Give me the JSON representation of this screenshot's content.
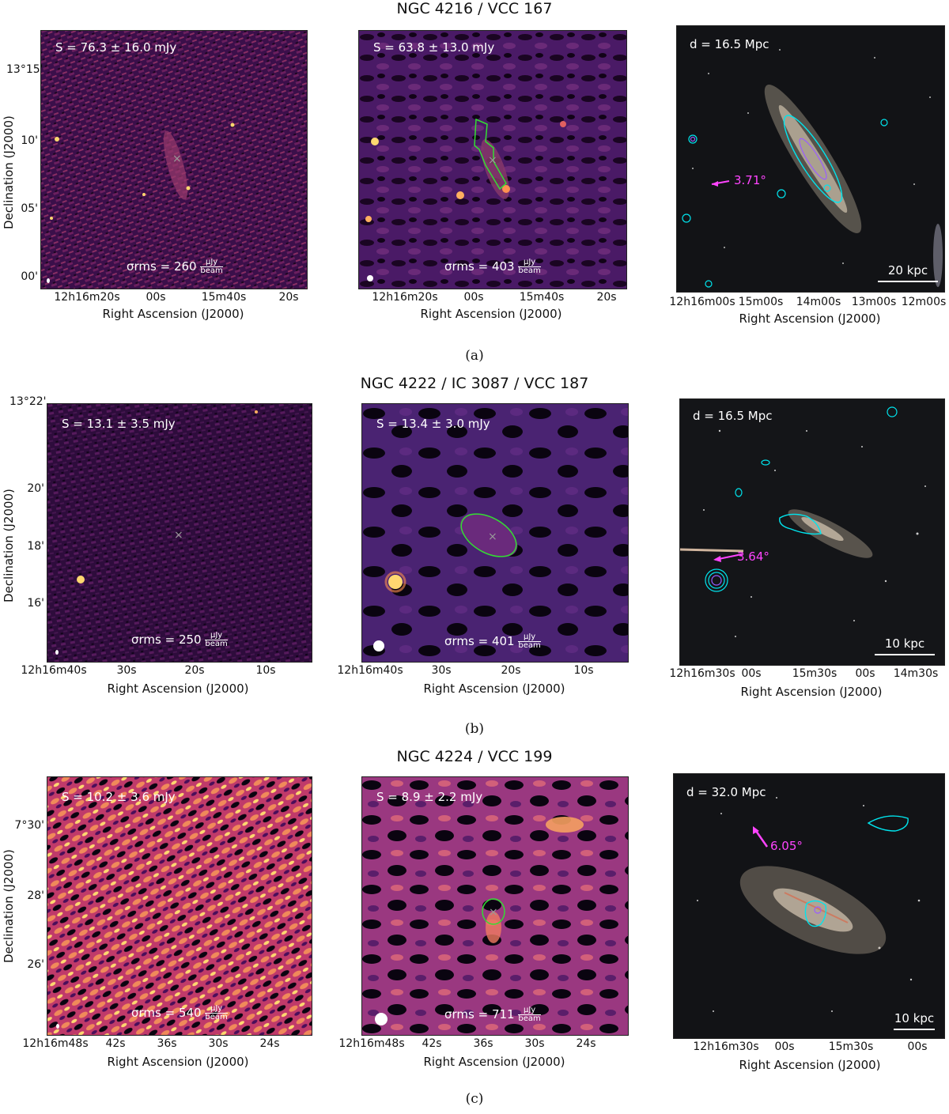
{
  "rows": [
    {
      "title": "NGC 4216 / VCC 167",
      "caption": "(a)",
      "left": {
        "flux": "S = 76.3 ± 16.0 mJy",
        "sigma_value": "260"
      },
      "mid": {
        "flux": "S = 63.8 ± 13.0 mJy",
        "sigma_value": "403"
      },
      "right": {
        "distance": "d = 16.5 Mpc",
        "angle": "3.71°",
        "scalebar": "20 kpc"
      },
      "yticks": [
        "13°15'",
        "10'",
        "05'",
        "00'"
      ],
      "xticks_lm": [
        "12h16m20s",
        "00s",
        "15m40s",
        "20s"
      ],
      "xticks_r": [
        "12h16m00s",
        "15m00s",
        "14m00s",
        "13m00s",
        "12m00s"
      ]
    },
    {
      "title": "NGC 4222 / IC 3087 / VCC 187",
      "caption": "(b)",
      "left": {
        "flux": "S = 13.1 ± 3.5 mJy",
        "sigma_value": "250"
      },
      "mid": {
        "flux": "S = 13.4 ± 3.0 mJy",
        "sigma_value": "401"
      },
      "right": {
        "distance": "d = 16.5 Mpc",
        "angle": "3.64°",
        "scalebar": "10 kpc"
      },
      "yticks": [
        "13°22'",
        "20'",
        "18'",
        "16'"
      ],
      "xticks_lm": [
        "12h16m40s",
        "30s",
        "20s",
        "10s"
      ],
      "xticks_r": [
        "12h16m30s",
        "00s",
        "15m30s",
        "00s",
        "14m30s"
      ]
    },
    {
      "title": "NGC 4224 / VCC 199",
      "caption": "(c)",
      "left": {
        "flux": "S = 10.2 ± 3.6 mJy",
        "sigma_value": "540"
      },
      "mid": {
        "flux": "S = 8.9 ± 2.2 mJy",
        "sigma_value": "711"
      },
      "right": {
        "distance": "d = 32.0 Mpc",
        "angle": "6.05°",
        "scalebar": "10 kpc"
      },
      "yticks": [
        "7°30'",
        "28'",
        "26'"
      ],
      "xticks_lm": [
        "12h16m48s",
        "42s",
        "36s",
        "30s",
        "24s"
      ],
      "xticks_r": [
        "12h16m30s",
        "00s",
        "15m30s",
        "00s"
      ]
    }
  ],
  "labels": {
    "xlabel": "Right Ascension (J2000)",
    "ylabel": "Declination (J2000)",
    "sigma_prefix": "σrms =",
    "unit_num": "μJy",
    "unit_den": "beam"
  },
  "colors": {
    "contour": "#00e5ee",
    "inner_contour": "#9a5cff",
    "region": "#33dd33",
    "arrow": "#ff44ff",
    "radio_bg": "#2a0a3a",
    "radio_hot": "#ffd870"
  }
}
